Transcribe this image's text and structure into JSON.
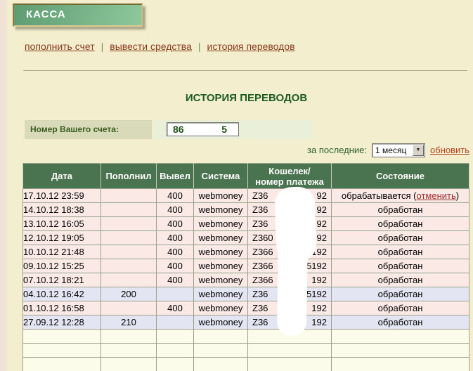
{
  "banner": {
    "label": "КАССА"
  },
  "nav": {
    "separator": "|",
    "items": [
      {
        "label": "пополнить счет"
      },
      {
        "label": "вывести средства"
      },
      {
        "label": "история переводов"
      }
    ]
  },
  "content": {
    "title": "ИСТОРИЯ ПЕРЕВОДОВ"
  },
  "account": {
    "label": "Номер Вашего счета:",
    "value_visible_start": "86",
    "value_visible_end": "5"
  },
  "filter": {
    "label": "за последние:",
    "selected_option": "1 месяц",
    "dropdown_arrow": "▼",
    "refresh_label": "обновить"
  },
  "table": {
    "headers": [
      "Дата",
      "Пополнил",
      "Вывел",
      "Система",
      "Кошелек/\nномер платежа",
      "Состояние"
    ],
    "rows": [
      {
        "date": "17.10.12 23:59",
        "deposit": "",
        "withdraw": "400",
        "system": "webmoney",
        "wallet_start": "Z36",
        "wallet_end": "92",
        "status": "обрабатывается",
        "cancel_link": "отменить",
        "row_type": "withdraw"
      },
      {
        "date": "14.10.12 18:38",
        "deposit": "",
        "withdraw": "400",
        "system": "webmoney",
        "wallet_start": "Z36",
        "wallet_end": "92",
        "status": "обработан",
        "cancel_link": "",
        "row_type": "withdraw"
      },
      {
        "date": "13.10.12 16:05",
        "deposit": "",
        "withdraw": "400",
        "system": "webmoney",
        "wallet_start": "Z36",
        "wallet_end": "92",
        "status": "обработан",
        "cancel_link": "",
        "row_type": "withdraw"
      },
      {
        "date": "12.10.12 19:05",
        "deposit": "",
        "withdraw": "400",
        "system": "webmoney",
        "wallet_start": "Z360",
        "wallet_end": "92",
        "status": "обработан",
        "cancel_link": "",
        "row_type": "withdraw"
      },
      {
        "date": "10.10.12 21:48",
        "deposit": "",
        "withdraw": "400",
        "system": "webmoney",
        "wallet_start": "Z366",
        "wallet_end": "192",
        "status": "обработан",
        "cancel_link": "",
        "row_type": "withdraw"
      },
      {
        "date": "09.10.12 15:25",
        "deposit": "",
        "withdraw": "400",
        "system": "webmoney",
        "wallet_start": "Z366",
        "wallet_end": "5192",
        "status": "обработан",
        "cancel_link": "",
        "row_type": "withdraw"
      },
      {
        "date": "07.10.12 18:21",
        "deposit": "",
        "withdraw": "400",
        "system": "webmoney",
        "wallet_start": "Z366",
        "wallet_end": "192",
        "status": "обработан",
        "cancel_link": "",
        "row_type": "withdraw"
      },
      {
        "date": "04.10.12 16:42",
        "deposit": "200",
        "withdraw": "",
        "system": "webmoney",
        "wallet_start": "Z36",
        "wallet_end": "5192",
        "status": "обработан",
        "cancel_link": "",
        "row_type": "deposit"
      },
      {
        "date": "01.10.12 16:58",
        "deposit": "",
        "withdraw": "400",
        "system": "webmoney",
        "wallet_start": "Z36",
        "wallet_end": "192",
        "status": "обработан",
        "cancel_link": "",
        "row_type": "withdraw"
      },
      {
        "date": "27.09.12 12:28",
        "deposit": "210",
        "withdraw": "",
        "system": "webmoney",
        "wallet_start": "Z36",
        "wallet_end": "192",
        "status": "обработан",
        "cancel_link": "",
        "row_type": "deposit"
      }
    ],
    "empty_rows": 3
  },
  "colors": {
    "page_cream": "#f3efce",
    "banner_green_dark": "#5f9c71",
    "banner_green_light": "#8dc89c",
    "table_header_green": "#4a7350",
    "row_pink": "#fae9e4",
    "row_lavender": "#e3e5f3",
    "row_empty_ivory": "#fbfce9",
    "nav_link_brown": "#8b3a1e",
    "refresh_link_orange": "#b5431b",
    "cancel_link_red": "#a03030",
    "title_green": "#1d5b21"
  }
}
